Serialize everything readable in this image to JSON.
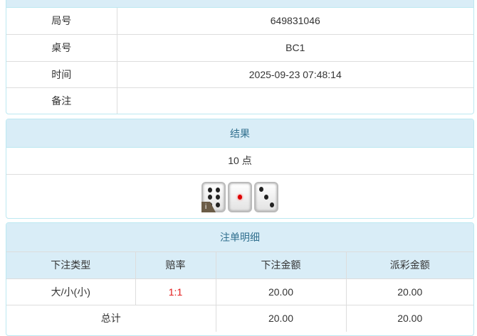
{
  "info": {
    "rows": [
      {
        "label": "局号",
        "value": "649831046"
      },
      {
        "label": "桌号",
        "value": "BC1"
      },
      {
        "label": "时间",
        "value": "2025-09-23 07:48:14"
      },
      {
        "label": "备注",
        "value": ""
      }
    ]
  },
  "result": {
    "title": "结果",
    "points": "10 点",
    "dice": [
      6,
      1,
      3
    ],
    "dice_badge": "i"
  },
  "bets": {
    "title": "注单明细",
    "headers": [
      "下注类型",
      "赔率",
      "下注金额",
      "派彩金额"
    ],
    "rows": [
      {
        "type": "大/小(小)",
        "odds": "1:1",
        "amount": "20.00",
        "payout": "20.00"
      }
    ],
    "total": {
      "label": "总计",
      "amount": "20.00",
      "payout": "20.00"
    }
  },
  "colors": {
    "header_bg": "#d9edf7",
    "header_text": "#31708f",
    "odds": "#e31a1a"
  }
}
